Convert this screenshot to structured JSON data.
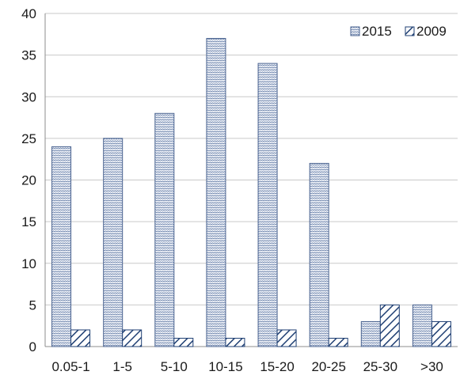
{
  "chart_data": {
    "type": "bar",
    "title": "",
    "xlabel": "",
    "ylabel": "",
    "categories": [
      "0.05-1",
      "1-5",
      "5-10",
      "10-15",
      "15-20",
      "20-25",
      "25-30",
      ">30"
    ],
    "series": [
      {
        "name": "2015",
        "values": [
          24,
          25,
          28,
          37,
          34,
          22,
          3,
          5
        ],
        "pattern": "zigzag",
        "color": "#3d5a8a"
      },
      {
        "name": "2009",
        "values": [
          2,
          2,
          1,
          1,
          2,
          1,
          5,
          3
        ],
        "pattern": "diagonal-hatch",
        "color": "#1f3f73"
      }
    ],
    "ylim": [
      0,
      40
    ],
    "yticks": [
      0,
      5,
      10,
      15,
      20,
      25,
      30,
      35,
      40
    ],
    "grid": true,
    "legend_position": "top-right"
  }
}
